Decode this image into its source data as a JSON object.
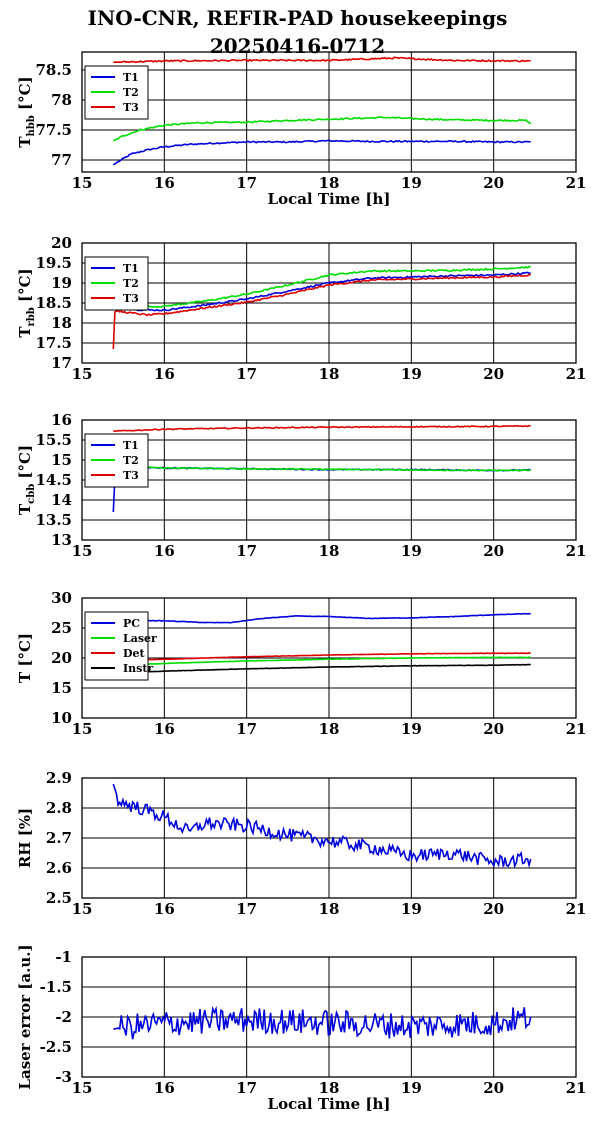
{
  "page": {
    "title_line1": "INO-CNR, REFIR-PAD housekeepings",
    "title_line2": "20250416-0712"
  },
  "chart_data": [
    {
      "type": "line",
      "ylabel_base": "T",
      "ylabel_sub": "hbb",
      "ylabel_unit": "[°C]",
      "xlabel": "Local Time [h]",
      "xlim": [
        15,
        21
      ],
      "ylim": [
        76.8,
        78.8
      ],
      "xticks": [
        15,
        16,
        17,
        18,
        19,
        20,
        21
      ],
      "yticks": [
        77,
        77.5,
        78,
        78.5
      ],
      "grid": true,
      "legend_position": "top-left",
      "series": [
        {
          "name": "T1",
          "color": "#0000dd",
          "noise": 0.012,
          "points": [
            [
              15.38,
              76.92
            ],
            [
              15.5,
              77.02
            ],
            [
              15.6,
              77.1
            ],
            [
              15.8,
              77.17
            ],
            [
              16.0,
              77.22
            ],
            [
              16.3,
              77.26
            ],
            [
              16.6,
              77.28
            ],
            [
              17.0,
              77.3
            ],
            [
              17.5,
              77.3
            ],
            [
              18.0,
              77.32
            ],
            [
              18.5,
              77.31
            ],
            [
              19.0,
              77.31
            ],
            [
              19.5,
              77.31
            ],
            [
              20.0,
              77.3
            ],
            [
              20.45,
              77.3
            ]
          ]
        },
        {
          "name": "T2",
          "color": "#00dd00",
          "noise": 0.012,
          "points": [
            [
              15.38,
              77.32
            ],
            [
              15.5,
              77.4
            ],
            [
              15.7,
              77.5
            ],
            [
              16.0,
              77.58
            ],
            [
              16.4,
              77.62
            ],
            [
              17.0,
              77.63
            ],
            [
              17.5,
              77.66
            ],
            [
              18.0,
              77.68
            ],
            [
              18.7,
              77.71
            ],
            [
              19.0,
              77.69
            ],
            [
              19.5,
              77.67
            ],
            [
              20.0,
              77.66
            ],
            [
              20.4,
              77.66
            ],
            [
              20.45,
              77.6
            ]
          ]
        },
        {
          "name": "T3",
          "color": "#dd0000",
          "noise": 0.012,
          "points": [
            [
              15.38,
              78.63
            ],
            [
              16.0,
              78.65
            ],
            [
              17.0,
              78.66
            ],
            [
              18.0,
              78.66
            ],
            [
              18.8,
              78.7
            ],
            [
              19.5,
              78.66
            ],
            [
              20.45,
              78.65
            ]
          ]
        }
      ]
    },
    {
      "type": "line",
      "ylabel_base": "T",
      "ylabel_sub": "rbb",
      "ylabel_unit": "[°C]",
      "xlabel": "",
      "xlim": [
        15,
        21
      ],
      "ylim": [
        17,
        20
      ],
      "xticks": [
        15,
        16,
        17,
        18,
        19,
        20,
        21
      ],
      "yticks": [
        17,
        17.5,
        18,
        18.5,
        19,
        19.5,
        20
      ],
      "grid": true,
      "legend_position": "top-left",
      "series": [
        {
          "name": "T1",
          "color": "#0000dd",
          "noise": 0.02,
          "points": [
            [
              15.38,
              18.5
            ],
            [
              15.45,
              18.4
            ],
            [
              15.7,
              18.33
            ],
            [
              16.0,
              18.32
            ],
            [
              16.5,
              18.45
            ],
            [
              17.0,
              18.6
            ],
            [
              17.5,
              18.8
            ],
            [
              18.0,
              19.0
            ],
            [
              18.5,
              19.12
            ],
            [
              19.0,
              19.15
            ],
            [
              19.5,
              19.18
            ],
            [
              20.0,
              19.2
            ],
            [
              20.45,
              19.25
            ]
          ]
        },
        {
          "name": "T2",
          "color": "#00dd00",
          "noise": 0.02,
          "points": [
            [
              15.38,
              18.55
            ],
            [
              15.45,
              18.47
            ],
            [
              15.7,
              18.4
            ],
            [
              16.0,
              18.42
            ],
            [
              16.5,
              18.55
            ],
            [
              17.0,
              18.72
            ],
            [
              17.5,
              18.95
            ],
            [
              18.0,
              19.2
            ],
            [
              18.5,
              19.3
            ],
            [
              19.0,
              19.3
            ],
            [
              19.5,
              19.32
            ],
            [
              20.0,
              19.35
            ],
            [
              20.45,
              19.4
            ]
          ]
        },
        {
          "name": "T3",
          "color": "#dd0000",
          "noise": 0.02,
          "points": [
            [
              15.38,
              17.35
            ],
            [
              15.4,
              18.3
            ],
            [
              15.6,
              18.25
            ],
            [
              15.8,
              18.2
            ],
            [
              16.0,
              18.23
            ],
            [
              16.5,
              18.38
            ],
            [
              17.0,
              18.52
            ],
            [
              17.5,
              18.72
            ],
            [
              18.0,
              18.95
            ],
            [
              18.5,
              19.07
            ],
            [
              19.0,
              19.1
            ],
            [
              19.5,
              19.13
            ],
            [
              20.0,
              19.15
            ],
            [
              20.45,
              19.2
            ]
          ]
        }
      ]
    },
    {
      "type": "line",
      "ylabel_base": "T",
      "ylabel_sub": "cbb",
      "ylabel_unit": "[°C]",
      "xlabel": "",
      "xlim": [
        15,
        21
      ],
      "ylim": [
        13,
        16
      ],
      "xticks": [
        15,
        16,
        17,
        18,
        19,
        20,
        21
      ],
      "yticks": [
        13,
        13.5,
        14,
        14.5,
        15,
        15.5,
        16
      ],
      "grid": true,
      "legend_position": "top-left",
      "series": [
        {
          "name": "T1",
          "color": "#0000dd",
          "noise": 0.012,
          "points": [
            [
              15.38,
              13.7
            ],
            [
              15.4,
              14.6
            ],
            [
              15.45,
              14.85
            ],
            [
              15.6,
              14.82
            ],
            [
              16.0,
              14.8
            ],
            [
              17.0,
              14.78
            ],
            [
              18.0,
              14.76
            ],
            [
              19.0,
              14.76
            ],
            [
              20.0,
              14.74
            ],
            [
              20.45,
              14.75
            ]
          ]
        },
        {
          "name": "T2",
          "color": "#00dd00",
          "noise": 0.012,
          "points": [
            [
              15.38,
              14.85
            ],
            [
              16.0,
              14.8
            ],
            [
              17.0,
              14.78
            ],
            [
              18.0,
              14.77
            ],
            [
              19.0,
              14.75
            ],
            [
              20.0,
              14.74
            ],
            [
              20.45,
              14.74
            ]
          ]
        },
        {
          "name": "T3",
          "color": "#dd0000",
          "noise": 0.012,
          "points": [
            [
              15.38,
              15.72
            ],
            [
              16.0,
              15.77
            ],
            [
              17.0,
              15.8
            ],
            [
              18.0,
              15.82
            ],
            [
              19.0,
              15.83
            ],
            [
              20.0,
              15.84
            ],
            [
              20.45,
              15.85
            ]
          ]
        }
      ]
    },
    {
      "type": "line",
      "ylabel_base": "T [°C]",
      "ylabel_sub": "",
      "ylabel_unit": "",
      "xlabel": "",
      "xlim": [
        15,
        21
      ],
      "ylim": [
        10,
        30
      ],
      "xticks": [
        15,
        16,
        17,
        18,
        19,
        20,
        21
      ],
      "yticks": [
        10,
        15,
        20,
        25,
        30
      ],
      "grid": true,
      "legend_position": "top-left",
      "series": [
        {
          "name": "PC",
          "color": "#0000dd",
          "noise": 0.04,
          "points": [
            [
              15.38,
              26.3
            ],
            [
              16.0,
              26.2
            ],
            [
              16.5,
              25.9
            ],
            [
              16.8,
              25.9
            ],
            [
              17.2,
              26.6
            ],
            [
              17.6,
              27.0
            ],
            [
              18.0,
              26.9
            ],
            [
              18.5,
              26.6
            ],
            [
              19.0,
              26.7
            ],
            [
              19.5,
              26.9
            ],
            [
              20.0,
              27.2
            ],
            [
              20.45,
              27.4
            ]
          ]
        },
        {
          "name": "Laser",
          "color": "#00dd00",
          "noise": 0.03,
          "points": [
            [
              15.38,
              18.7
            ],
            [
              16.0,
              19.1
            ],
            [
              17.0,
              19.5
            ],
            [
              18.0,
              19.8
            ],
            [
              19.0,
              20.0
            ],
            [
              20.0,
              20.1
            ],
            [
              20.45,
              20.1
            ]
          ]
        },
        {
          "name": "Det",
          "color": "#dd0000",
          "noise": 0.03,
          "points": [
            [
              15.38,
              19.6
            ],
            [
              16.0,
              19.8
            ],
            [
              17.0,
              20.2
            ],
            [
              18.0,
              20.5
            ],
            [
              19.0,
              20.7
            ],
            [
              20.0,
              20.8
            ],
            [
              20.45,
              20.8
            ]
          ]
        },
        {
          "name": "Instr",
          "color": "#000000",
          "noise": 0.03,
          "points": [
            [
              15.38,
              17.6
            ],
            [
              16.0,
              17.8
            ],
            [
              17.0,
              18.2
            ],
            [
              18.0,
              18.5
            ],
            [
              19.0,
              18.7
            ],
            [
              20.0,
              18.8
            ],
            [
              20.45,
              18.9
            ]
          ]
        }
      ]
    },
    {
      "type": "line",
      "ylabel_base": "RH [%]",
      "ylabel_sub": "",
      "ylabel_unit": "",
      "xlabel": "",
      "xlim": [
        15,
        21
      ],
      "ylim": [
        2.5,
        2.9
      ],
      "xticks": [
        15,
        16,
        17,
        18,
        19,
        20,
        21
      ],
      "yticks": [
        2.5,
        2.6,
        2.7,
        2.8,
        2.9
      ],
      "grid": true,
      "series": [
        {
          "name": "",
          "color": "#0000dd",
          "noise": 0.022,
          "points": [
            [
              15.38,
              2.88
            ],
            [
              15.45,
              2.82
            ],
            [
              15.7,
              2.8
            ],
            [
              16.0,
              2.77
            ],
            [
              16.3,
              2.72
            ],
            [
              16.5,
              2.75
            ],
            [
              17.0,
              2.74
            ],
            [
              17.5,
              2.71
            ],
            [
              18.0,
              2.69
            ],
            [
              18.5,
              2.67
            ],
            [
              19.0,
              2.64
            ],
            [
              19.5,
              2.65
            ],
            [
              20.0,
              2.62
            ],
            [
              20.45,
              2.63
            ]
          ]
        }
      ]
    },
    {
      "type": "line",
      "ylabel_base": "Laser error [a.u.]",
      "ylabel_sub": "",
      "ylabel_unit": "",
      "xlabel": "Local Time [h]",
      "xlim": [
        15,
        21
      ],
      "ylim": [
        -3,
        -1
      ],
      "xticks": [
        15,
        16,
        17,
        18,
        19,
        20,
        21
      ],
      "yticks": [
        -3,
        -2.5,
        -2,
        -1.5,
        -1
      ],
      "grid": true,
      "series": [
        {
          "name": "",
          "color": "#0000dd",
          "noise": 0.22,
          "points": [
            [
              15.38,
              -2.2
            ],
            [
              16.0,
              -2.1
            ],
            [
              17.0,
              -2.05
            ],
            [
              18.0,
              -2.1
            ],
            [
              19.0,
              -2.15
            ],
            [
              20.0,
              -2.1
            ],
            [
              20.45,
              -2.0
            ]
          ]
        }
      ]
    }
  ]
}
